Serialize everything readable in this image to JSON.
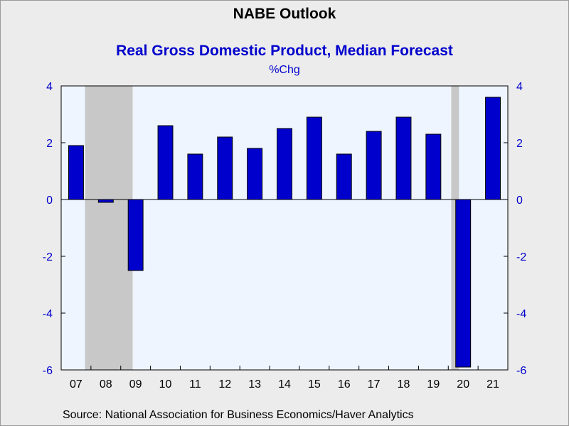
{
  "header": {
    "title": "NABE Outlook",
    "subtitle": "Real Gross Domestic Product, Median Forecast",
    "unit": "%Chg"
  },
  "footer": {
    "source": "Source:  National Association for Business Economics/Haver Analytics"
  },
  "colors": {
    "bar": "#0000cc",
    "plot_background": "#eef5ff",
    "recession": "#c8c8c8",
    "axis_text": "#0000cc"
  },
  "chart_data": {
    "type": "bar",
    "categories": [
      "07",
      "08",
      "09",
      "10",
      "11",
      "12",
      "13",
      "14",
      "15",
      "16",
      "17",
      "18",
      "19",
      "20",
      "21"
    ],
    "values": [
      1.9,
      -0.1,
      -2.5,
      2.6,
      1.6,
      2.2,
      1.8,
      2.5,
      2.9,
      1.6,
      2.4,
      2.9,
      2.3,
      -5.9,
      3.6
    ],
    "ylim": [
      -6,
      4
    ],
    "yticks": [
      4,
      2,
      0,
      -2,
      -4,
      -6
    ],
    "recessions": [
      {
        "start": "08",
        "end": "09"
      },
      {
        "start": "20",
        "end": "20"
      }
    ],
    "grid": false,
    "zero_line": true
  }
}
